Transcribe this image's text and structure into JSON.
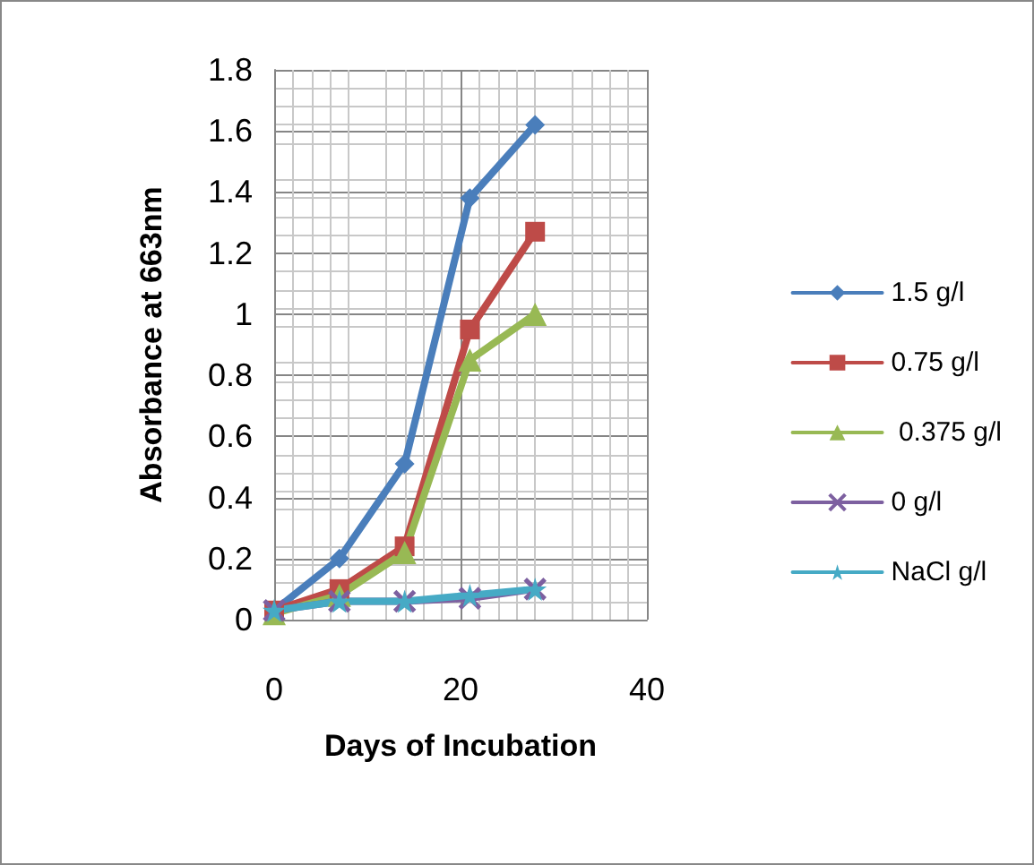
{
  "chart_data": {
    "type": "line",
    "xlabel": "Days of Incubation",
    "ylabel": "Absorbance at 663nm",
    "x": [
      0,
      7,
      14,
      21,
      28
    ],
    "series": [
      {
        "name": "1.5 g/l",
        "color": "#4a7ebb",
        "marker": "diamond",
        "values": [
          0.03,
          0.2,
          0.51,
          1.38,
          1.62
        ]
      },
      {
        "name": "0.75 g/l",
        "color": "#be4b48",
        "marker": "square",
        "values": [
          0.03,
          0.1,
          0.24,
          0.95,
          1.27
        ]
      },
      {
        "name": " 0.375 g/l",
        "color": "#98b954",
        "marker": "triangle",
        "values": [
          0.02,
          0.08,
          0.22,
          0.85,
          1.0
        ]
      },
      {
        "name": "0 g/l",
        "color": "#7d60a0",
        "marker": "cross",
        "values": [
          0.03,
          0.06,
          0.06,
          0.07,
          0.1
        ]
      },
      {
        "name": "NaCl g/l",
        "color": "#46aac5",
        "marker": "star",
        "values": [
          0.03,
          0.06,
          0.06,
          0.08,
          0.1
        ]
      }
    ],
    "xlim": [
      0,
      40
    ],
    "xticks": [
      0,
      20,
      40
    ],
    "ylim": [
      0,
      1.8
    ],
    "yticks": [
      0,
      0.2,
      0.4,
      0.6,
      0.8,
      1,
      1.2,
      1.4,
      1.6,
      1.8
    ],
    "grid": true,
    "legend": "right",
    "line_style": "solid"
  }
}
